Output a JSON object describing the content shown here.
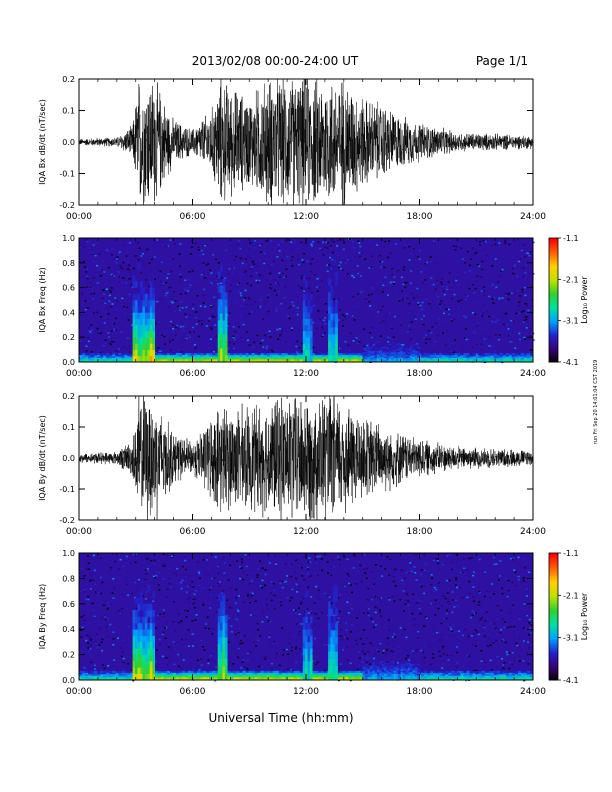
{
  "header": {
    "title": "2013/02/08  00:00-24:00 UT",
    "page": "Page 1/1"
  },
  "side_note": "run Fri Sep 20 14:01:04 CST 2019",
  "x_axis_title": "Universal Time (hh:mm)",
  "colorbar": {
    "label": "Log₁₀ Power",
    "ticks": [
      "-1.1",
      "-2.1",
      "-3.1",
      "-4.1"
    ],
    "colors": [
      "#000000",
      "#3a0078",
      "#2222cc",
      "#00a0ff",
      "#00e0a0",
      "#30d030",
      "#c0e000",
      "#ffd000",
      "#ff6000",
      "#ff0000"
    ]
  },
  "chart_data": [
    {
      "type": "line",
      "ylabel": "IQA Bx dB/dt (nT/sec)",
      "xlim": [
        "00:00",
        "24:00"
      ],
      "ylim": [
        -0.2,
        0.2
      ],
      "x_ticks": [
        "00:00",
        "06:00",
        "12:00",
        "18:00",
        "24:00"
      ],
      "y_ticks": [
        "-0.2",
        "-0.1",
        "0.0",
        "0.1",
        "0.2"
      ],
      "series": [
        {
          "x": [
            "00:00",
            "02:00",
            "02:50",
            "03:10",
            "03:30",
            "04:00",
            "04:30",
            "05:00",
            "06:00",
            "07:00",
            "07:30",
            "08:00",
            "09:00",
            "10:00",
            "11:00",
            "12:00",
            "13:00",
            "13:30",
            "14:00",
            "15:00",
            "16:00",
            "17:00",
            "18:00",
            "20:00",
            "22:00",
            "24:00"
          ],
          "values": [
            0.01,
            0.015,
            0.05,
            0.2,
            0.2,
            0.2,
            0.13,
            0.07,
            0.04,
            0.1,
            0.2,
            0.17,
            0.14,
            0.2,
            0.2,
            0.2,
            0.2,
            0.2,
            0.2,
            0.14,
            0.12,
            0.08,
            0.06,
            0.03,
            0.025,
            0.02
          ]
        }
      ]
    },
    {
      "type": "heatmap",
      "ylabel": "IQA Bx Freq (Hz)",
      "xlim": [
        "00:00",
        "24:00"
      ],
      "ylim": [
        0.0,
        1.0
      ],
      "x_ticks": [
        "00:00",
        "06:00",
        "12:00",
        "18:00",
        "24:00"
      ],
      "y_ticks": [
        "0.0",
        "0.2",
        "0.4",
        "0.6",
        "0.8",
        "1.0"
      ],
      "zlabel": "Log₁₀ Power",
      "zlim": [
        -4.1,
        -1.1
      ],
      "enhanced_intervals": [
        {
          "x": [
            "02:50",
            "04:00"
          ],
          "f_max": 0.8,
          "level": -1.5
        },
        {
          "x": [
            "07:20",
            "07:50"
          ],
          "f_max": 0.9,
          "level": -1.8
        },
        {
          "x": [
            "11:50",
            "12:20"
          ],
          "f_max": 0.8,
          "level": -2.6
        },
        {
          "x": [
            "13:10",
            "13:40"
          ],
          "f_max": 0.9,
          "level": -2.4
        },
        {
          "x": [
            "15:00",
            "18:00"
          ],
          "f_max": 0.18,
          "level": -2.9
        }
      ],
      "background_level": -3.6
    },
    {
      "type": "line",
      "ylabel": "IQA By dB/dt (nT/sec)",
      "xlim": [
        "00:00",
        "24:00"
      ],
      "ylim": [
        -0.2,
        0.2
      ],
      "x_ticks": [
        "00:00",
        "06:00",
        "12:00",
        "18:00",
        "24:00"
      ],
      "y_ticks": [
        "-0.2",
        "-0.1",
        "0.0",
        "0.1",
        "0.2"
      ],
      "series": [
        {
          "x": [
            "00:00",
            "02:00",
            "02:50",
            "03:10",
            "03:30",
            "04:00",
            "04:30",
            "05:00",
            "06:00",
            "07:00",
            "07:30",
            "08:00",
            "09:00",
            "10:00",
            "11:00",
            "12:00",
            "13:00",
            "13:30",
            "14:00",
            "15:00",
            "16:00",
            "17:00",
            "18:00",
            "20:00",
            "22:00",
            "24:00"
          ],
          "values": [
            0.015,
            0.02,
            0.06,
            0.2,
            0.2,
            0.2,
            0.14,
            0.08,
            0.05,
            0.13,
            0.17,
            0.16,
            0.16,
            0.18,
            0.2,
            0.2,
            0.2,
            0.2,
            0.18,
            0.13,
            0.11,
            0.08,
            0.06,
            0.035,
            0.03,
            0.025
          ]
        }
      ]
    },
    {
      "type": "heatmap",
      "ylabel": "IQA By Freq (Hz)",
      "xlim": [
        "00:00",
        "24:00"
      ],
      "ylim": [
        0.0,
        1.0
      ],
      "x_ticks": [
        "00:00",
        "06:00",
        "12:00",
        "18:00",
        "24:00"
      ],
      "y_ticks": [
        "0.0",
        "0.2",
        "0.4",
        "0.6",
        "0.8",
        "1.0"
      ],
      "zlabel": "Log₁₀ Power",
      "zlim": [
        -4.1,
        -1.1
      ],
      "enhanced_intervals": [
        {
          "x": [
            "02:50",
            "04:00"
          ],
          "f_max": 0.8,
          "level": -1.6
        },
        {
          "x": [
            "07:20",
            "07:50"
          ],
          "f_max": 0.9,
          "level": -1.9
        },
        {
          "x": [
            "11:50",
            "12:20"
          ],
          "f_max": 0.8,
          "level": -2.5
        },
        {
          "x": [
            "13:10",
            "13:40"
          ],
          "f_max": 0.9,
          "level": -2.3
        },
        {
          "x": [
            "15:00",
            "18:00"
          ],
          "f_max": 0.2,
          "level": -2.8
        }
      ],
      "background_level": -3.6
    }
  ]
}
